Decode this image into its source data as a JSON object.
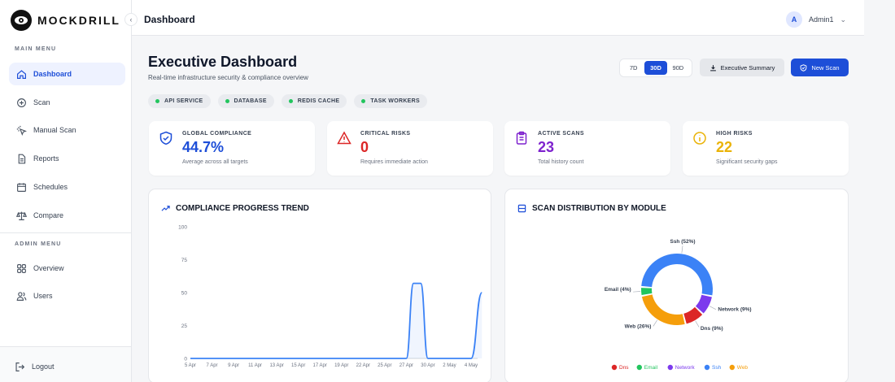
{
  "brand": {
    "name": "MOCKDRILL"
  },
  "header": {
    "title": "Dashboard",
    "user": {
      "initial": "A",
      "name": "Admin1"
    }
  },
  "sidebar": {
    "main_heading": "MAIN MENU",
    "main_items": [
      {
        "label": "Dashboard",
        "icon": "home-icon",
        "active": true
      },
      {
        "label": "Scan",
        "icon": "target-icon"
      },
      {
        "label": "Manual Scan",
        "icon": "cursor-click-icon"
      },
      {
        "label": "Reports",
        "icon": "document-icon"
      },
      {
        "label": "Schedules",
        "icon": "calendar-icon"
      },
      {
        "label": "Compare",
        "icon": "scale-icon"
      }
    ],
    "admin_heading": "ADMIN MENU",
    "admin_items": [
      {
        "label": "Overview",
        "icon": "grid-icon"
      },
      {
        "label": "Users",
        "icon": "users-icon"
      }
    ],
    "logout": "Logout"
  },
  "page": {
    "title": "Executive Dashboard",
    "subtitle": "Real-time infrastructure security & compliance overview",
    "ranges": [
      "7D",
      "30D",
      "90D"
    ],
    "active_range": "30D",
    "exec_summary": "Executive Summary",
    "new_scan": "New Scan"
  },
  "services": [
    "API SERVICE",
    "DATABASE",
    "REDIS CACHE",
    "TASK WORKERS"
  ],
  "stats": [
    {
      "label": "GLOBAL COMPLIANCE",
      "value": "44.7%",
      "note": "Average across all targets",
      "color": "#1d4ed8",
      "icon": "shield-check-icon"
    },
    {
      "label": "CRITICAL RISKS",
      "value": "0",
      "note": "Requires immediate action",
      "color": "#dc2626",
      "icon": "warning-triangle-icon"
    },
    {
      "label": "ACTIVE SCANS",
      "value": "23",
      "note": "Total history count",
      "color": "#7e22ce",
      "icon": "clipboard-icon"
    },
    {
      "label": "HIGH RISKS",
      "value": "22",
      "note": "Significant security gaps",
      "color": "#eab308",
      "icon": "info-circle-icon"
    }
  ],
  "trend_panel": {
    "title": "COMPLIANCE PROGRESS TREND"
  },
  "dist_panel": {
    "title": "SCAN DISTRIBUTION BY MODULE"
  },
  "chart_data": [
    {
      "type": "area",
      "title": "COMPLIANCE PROGRESS TREND",
      "ylim": [
        0,
        100
      ],
      "yticks": [
        0,
        25,
        50,
        75,
        100
      ],
      "x_tick_labels": [
        "5 Apr",
        "7 Apr",
        "9 Apr",
        "11 Apr",
        "13 Apr",
        "15 Apr",
        "17 Apr",
        "19 Apr",
        "22 Apr",
        "25 Apr",
        "27 Apr",
        "30 Apr",
        "2 May",
        "4 May"
      ],
      "x": [
        "5 Apr",
        "7 Apr",
        "9 Apr",
        "11 Apr",
        "13 Apr",
        "15 Apr",
        "17 Apr",
        "19 Apr",
        "22 Apr",
        "25 Apr",
        "27 Apr",
        "28 Apr",
        "29 Apr",
        "30 Apr",
        "2 May",
        "4 May",
        "5 May"
      ],
      "series": [
        {
          "values": [
            0,
            0,
            0,
            0,
            0,
            0,
            0,
            0,
            0,
            0,
            0,
            57,
            57,
            0,
            0,
            0,
            50
          ],
          "color": "#3b82f6"
        }
      ],
      "grid": false
    },
    {
      "type": "pie",
      "title": "SCAN DISTRIBUTION BY MODULE",
      "donut": true,
      "legend_position": "bottom",
      "slices": [
        {
          "label": "Ssh",
          "value": 52,
          "color": "#3b82f6"
        },
        {
          "label": "Network",
          "value": 9,
          "color": "#7c3aed"
        },
        {
          "label": "Dns",
          "value": 9,
          "color": "#dc2626"
        },
        {
          "label": "Web",
          "value": 26,
          "color": "#f59e0b"
        },
        {
          "label": "Email",
          "value": 4,
          "color": "#22c55e"
        }
      ],
      "legend": [
        "Dns",
        "Email",
        "Network",
        "Ssh",
        "Web"
      ]
    }
  ]
}
